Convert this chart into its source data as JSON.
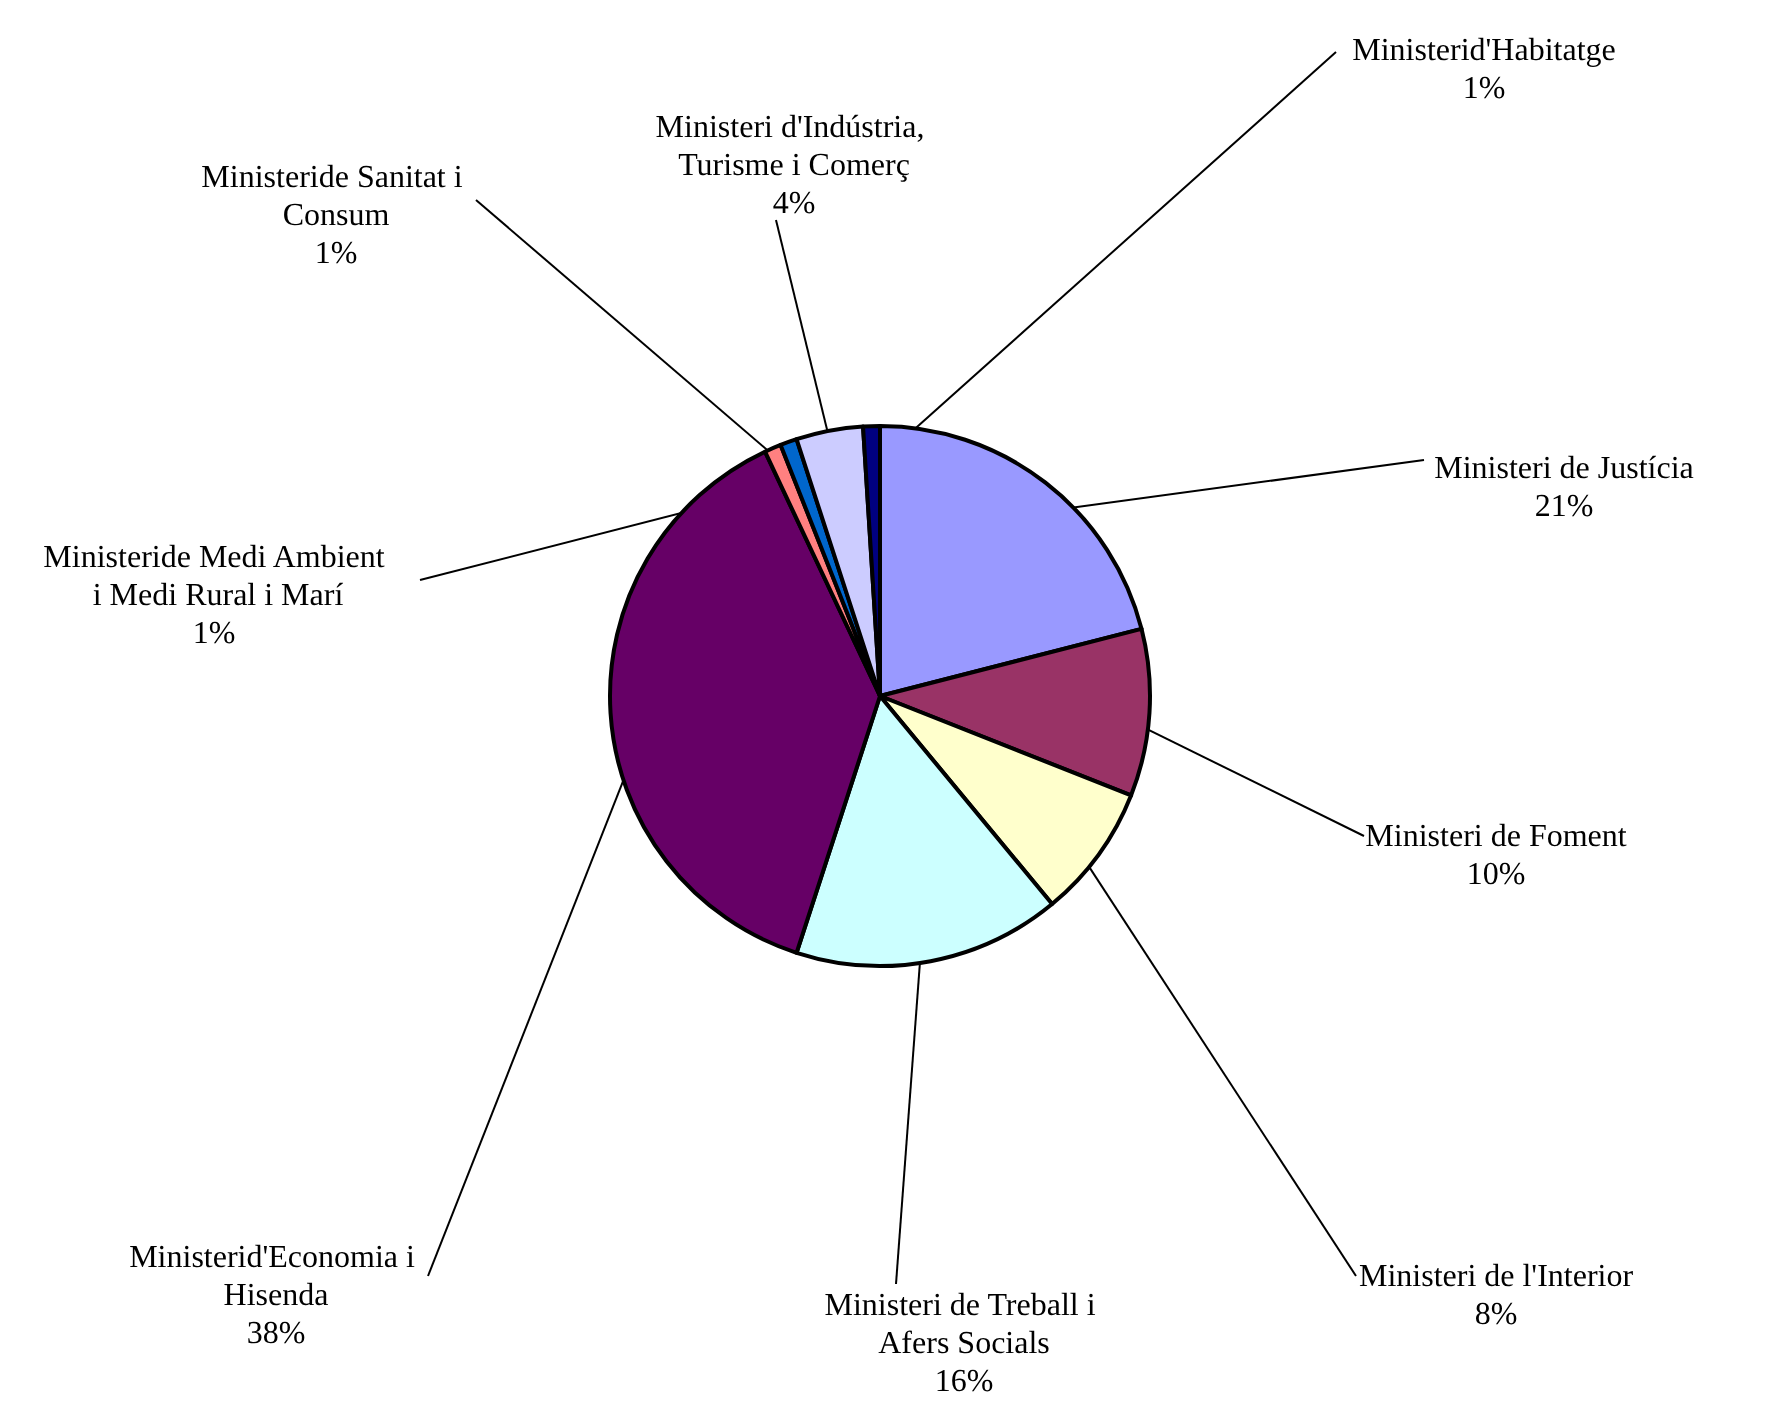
{
  "chart_data": {
    "type": "pie",
    "categories": [
      "Ministeri de Justícia",
      "Ministeri de Foment",
      "Ministeri de l'Interior",
      "Ministeri de Treball i Afers Socials",
      "Ministerid'Economia i Hisenda",
      "Ministeride Medi Ambient i Medi Rural i Marí",
      "Ministeride Sanitat i Consum",
      "Ministeri d'Indústria, Turisme i Comerç",
      "Ministerid'Habitatge"
    ],
    "values": [
      21,
      10,
      8,
      16,
      38,
      1,
      1,
      4,
      1
    ],
    "value_labels": [
      "21%",
      "10%",
      "8%",
      "16%",
      "38%",
      "1%",
      "1%",
      "4%",
      "1%"
    ],
    "colors": [
      "#9999ff",
      "#993366",
      "#ffffcc",
      "#ccffff",
      "#660066",
      "#ff8080",
      "#0066cc",
      "#ccccff",
      "#000080"
    ]
  }
}
